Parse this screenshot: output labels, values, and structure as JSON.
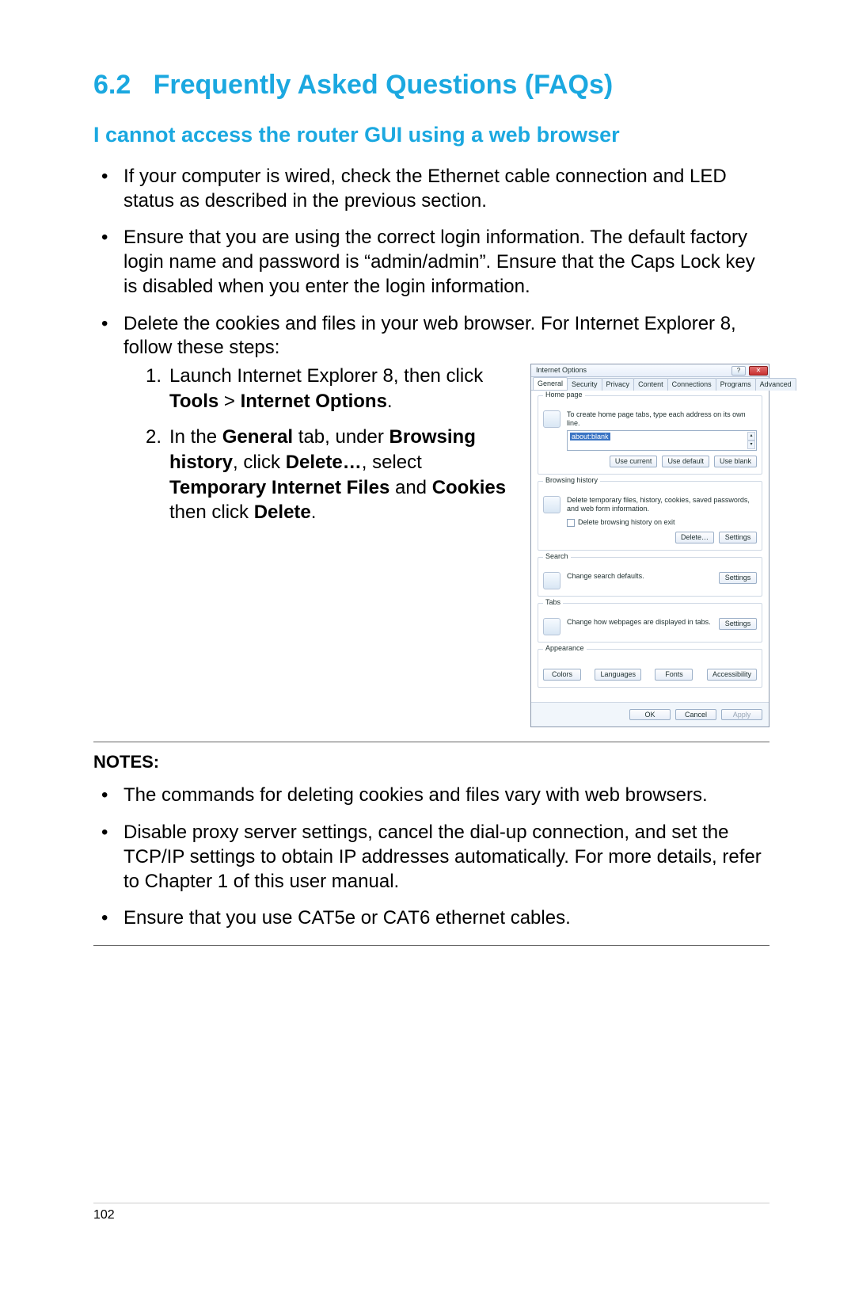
{
  "section": {
    "number": "6.2",
    "title": "Frequently Asked Questions (FAQs)"
  },
  "subhead": "I cannot access the router GUI using a web browser",
  "bullets": {
    "b1": "If your computer is wired, check the Ethernet cable connection and LED status as described in the previous section.",
    "b2": "Ensure that you are using the correct login information. The default factory login name and password is “admin/admin”. Ensure that the Caps Lock key is disabled when you enter the login information.",
    "b3": "Delete the cookies and files in your web browser. For Internet Explorer 8, follow these steps:"
  },
  "steps": {
    "s1_a": "Launch Internet Explorer 8, then click ",
    "s1_b": "Tools",
    "s1_c": " > ",
    "s1_d": "Internet Options",
    "s1_e": ".",
    "s2_a": "In the ",
    "s2_b": "General",
    "s2_c": " tab, under ",
    "s2_d": "Browsing history",
    "s2_e": ", click ",
    "s2_f": "Delete…",
    "s2_g": ", select ",
    "s2_h": "Temporary Internet Files",
    "s2_i": " and ",
    "s2_j": "Cookies",
    "s2_k": " then click ",
    "s2_l": "Delete",
    "s2_m": "."
  },
  "dialog": {
    "title": "Internet Options",
    "help_label": "?",
    "close_label": "✕",
    "tabs": [
      "General",
      "Security",
      "Privacy",
      "Content",
      "Connections",
      "Programs",
      "Advanced"
    ],
    "home": {
      "label": "Home page",
      "text": "To create home page tabs, type each address on its own line.",
      "url": "about:blank",
      "buttons": [
        "Use current",
        "Use default",
        "Use blank"
      ]
    },
    "history": {
      "label": "Browsing history",
      "text": "Delete temporary files, history, cookies, saved passwords, and web form information.",
      "checkbox": "Delete browsing history on exit",
      "buttons": [
        "Delete…",
        "Settings"
      ]
    },
    "search": {
      "label": "Search",
      "text": "Change search defaults.",
      "button": "Settings"
    },
    "tabs_grp": {
      "label": "Tabs",
      "text": "Change how webpages are displayed in tabs.",
      "button": "Settings"
    },
    "appearance": {
      "label": "Appearance",
      "buttons": [
        "Colors",
        "Languages",
        "Fonts",
        "Accessibility"
      ]
    },
    "footer": [
      "OK",
      "Cancel",
      "Apply"
    ]
  },
  "notes": {
    "label": "NOTES:",
    "n1": "The commands for deleting cookies and files vary with web browsers.",
    "n2": "Disable proxy server settings, cancel the dial-up connection, and set the TCP/IP settings to obtain IP addresses automatically. For more details, refer to Chapter 1 of this user manual.",
    "n3": "Ensure that you use CAT5e or CAT6 ethernet cables."
  },
  "page_number": "102",
  "colors": {
    "accent": "#1ba8e0",
    "text": "#000000"
  }
}
